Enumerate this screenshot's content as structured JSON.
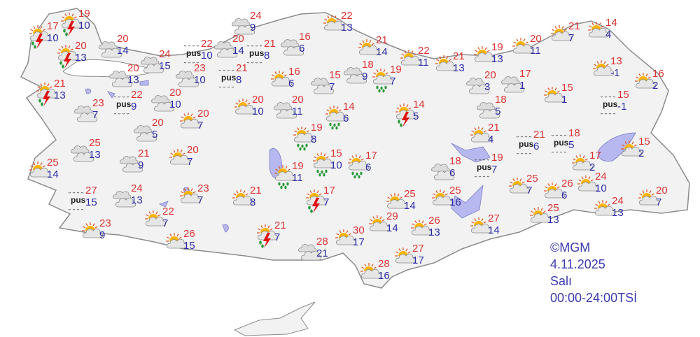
{
  "colors": {
    "max_temp": "#dd3333",
    "min_temp": "#2b2bab",
    "land": "#f2f2f2",
    "border": "#9a9a9a",
    "lake": "#b8b8f0",
    "legend": "#3b3bb0"
  },
  "fog_label": "pus",
  "legend": {
    "source": "©MGM",
    "date": "4.11.2025",
    "day": "Salı",
    "period": "00:00-24:00TSİ"
  },
  "stations": [
    {
      "icon": "thunderstorm",
      "max": "17",
      "min": "10"
    },
    {
      "icon": "thunderstorm",
      "max": "19",
      "min": "10"
    },
    {
      "icon": "thunderstorm",
      "max": "20",
      "min": "13"
    },
    {
      "icon": "thunderstorm",
      "max": "21",
      "min": "13"
    },
    {
      "icon": "cloudy",
      "max": "20",
      "min": "14"
    },
    {
      "icon": "cloudy",
      "max": "24",
      "min": "15"
    },
    {
      "icon": "cloudy",
      "max": "20",
      "min": "13"
    },
    {
      "icon": "fog",
      "max": "22",
      "min": "9"
    },
    {
      "icon": "cloudy",
      "max": "23",
      "min": "7"
    },
    {
      "icon": "cloudy",
      "max": "20",
      "min": "10"
    },
    {
      "icon": "fog",
      "max": "22",
      "min": "10"
    },
    {
      "icon": "cloudy",
      "max": "23",
      "min": "10"
    },
    {
      "icon": "fog",
      "max": "21",
      "min": "8"
    },
    {
      "icon": "cloudy",
      "max": "20",
      "min": "14"
    },
    {
      "icon": "fog",
      "max": "21",
      "min": "8"
    },
    {
      "icon": "cloudy",
      "max": "24",
      "min": "9"
    },
    {
      "icon": "cloudy",
      "max": "16",
      "min": "6"
    },
    {
      "icon": "partly-cloudy",
      "max": "16",
      "min": "6"
    },
    {
      "icon": "cloudy",
      "max": "15",
      "min": "7"
    },
    {
      "icon": "partly-cloudy",
      "max": "20",
      "min": "10"
    },
    {
      "icon": "cloudy",
      "max": "20",
      "min": "11"
    },
    {
      "icon": "partly-cloudy",
      "max": "20",
      "min": "7"
    },
    {
      "icon": "cloudy",
      "max": "20",
      "min": "5"
    },
    {
      "icon": "cloudy",
      "max": "25",
      "min": "13"
    },
    {
      "icon": "cloudy",
      "max": "21",
      "min": "9"
    },
    {
      "icon": "partly-cloudy",
      "max": "20",
      "min": "7"
    },
    {
      "icon": "partly-cloudy",
      "max": "25",
      "min": "14"
    },
    {
      "icon": "fog",
      "max": "27",
      "min": "15"
    },
    {
      "icon": "cloudy",
      "max": "24",
      "min": "13"
    },
    {
      "icon": "partly-cloudy",
      "max": "23",
      "min": "7"
    },
    {
      "icon": "partly-cloudy",
      "max": "22",
      "min": "7"
    },
    {
      "icon": "partly-cloudy",
      "max": "23",
      "min": "9"
    },
    {
      "icon": "partly-cloudy",
      "max": "26",
      "min": "15"
    },
    {
      "icon": "partly-cloudy",
      "max": "21",
      "min": "8"
    },
    {
      "icon": "thunderstorm",
      "max": "21",
      "min": "7"
    },
    {
      "icon": "rain",
      "max": "19",
      "min": "11"
    },
    {
      "icon": "thunderstorm",
      "max": "17",
      "min": "7"
    },
    {
      "icon": "rain",
      "max": "19",
      "min": "8"
    },
    {
      "icon": "rain",
      "max": "15",
      "min": "10"
    },
    {
      "icon": "rain",
      "max": "17",
      "min": "6"
    },
    {
      "icon": "rain",
      "max": "14",
      "min": "6"
    },
    {
      "icon": "partly-cloudy",
      "max": "22",
      "min": "13"
    },
    {
      "icon": "partly-cloudy",
      "max": "21",
      "min": "14"
    },
    {
      "icon": "partly-cloudy",
      "max": "22",
      "min": "11"
    },
    {
      "icon": "partly-cloudy",
      "max": "21",
      "min": "13"
    },
    {
      "icon": "partly-cloudy",
      "max": "19",
      "min": "13"
    },
    {
      "icon": "partly-cloudy",
      "max": "20",
      "min": "11"
    },
    {
      "icon": "partly-cloudy",
      "max": "21",
      "min": "7"
    },
    {
      "icon": "partly-cloudy",
      "max": "14",
      "min": "4"
    },
    {
      "icon": "cloudy",
      "max": "18",
      "min": "9"
    },
    {
      "icon": "rain",
      "max": "19",
      "min": "7"
    },
    {
      "icon": "thunderstorm",
      "max": "14",
      "min": "5"
    },
    {
      "icon": "cloudy",
      "max": "20",
      "min": "3"
    },
    {
      "icon": "cloudy",
      "max": "17",
      "min": "1"
    },
    {
      "icon": "partly-cloudy",
      "max": "15",
      "min": "1"
    },
    {
      "icon": "cloudy",
      "max": "18",
      "min": "5"
    },
    {
      "icon": "partly-cloudy",
      "max": "13",
      "min": "-1"
    },
    {
      "icon": "partly-cloudy",
      "max": "16",
      "min": "2"
    },
    {
      "icon": "fog",
      "max": "15",
      "min": "-1"
    },
    {
      "icon": "partly-cloudy",
      "max": "21",
      "min": "4"
    },
    {
      "icon": "fog",
      "max": "21",
      "min": "6"
    },
    {
      "icon": "fog",
      "max": "18",
      "min": "5"
    },
    {
      "icon": "partly-cloudy",
      "max": "15",
      "min": "2"
    },
    {
      "icon": "partly-cloudy",
      "max": "17",
      "min": "2"
    },
    {
      "icon": "cloudy",
      "max": "18",
      "min": "6"
    },
    {
      "icon": "fog",
      "max": "19",
      "min": "7"
    },
    {
      "icon": "partly-cloudy",
      "max": "25",
      "min": "7"
    },
    {
      "icon": "partly-cloudy",
      "max": "26",
      "min": "6"
    },
    {
      "icon": "partly-cloudy",
      "max": "24",
      "min": "10"
    },
    {
      "icon": "partly-cloudy",
      "max": "20",
      "min": "7"
    },
    {
      "icon": "partly-cloudy",
      "max": "24",
      "min": "13"
    },
    {
      "icon": "partly-cloudy",
      "max": "25",
      "min": "13"
    },
    {
      "icon": "partly-cloudy",
      "max": "25",
      "min": "14"
    },
    {
      "icon": "partly-cloudy",
      "max": "25",
      "min": "16"
    },
    {
      "icon": "partly-cloudy",
      "max": "27",
      "min": "14"
    },
    {
      "icon": "partly-cloudy",
      "max": "26",
      "min": "13"
    },
    {
      "icon": "partly-cloudy",
      "max": "29",
      "min": "14"
    },
    {
      "icon": "partly-cloudy",
      "max": "30",
      "min": "17"
    },
    {
      "icon": "cloudy",
      "max": "28",
      "min": "21"
    },
    {
      "icon": "partly-cloudy",
      "max": "27",
      "min": "17"
    },
    {
      "icon": "partly-cloudy",
      "max": "28",
      "min": "16"
    }
  ]
}
